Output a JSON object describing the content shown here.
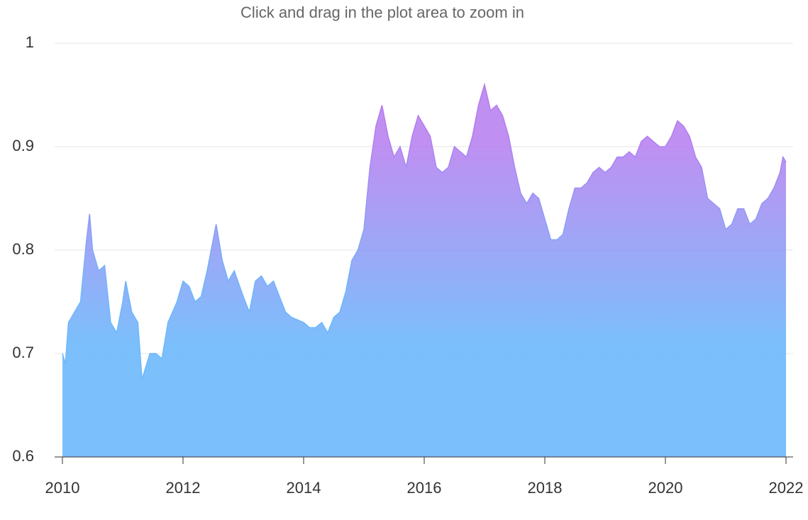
{
  "chart_data": {
    "type": "area",
    "subtitle": "Click and drag in the plot area to zoom in",
    "x": [
      2010.0,
      2010.05,
      2010.1,
      2010.2,
      2010.3,
      2010.4,
      2010.45,
      2010.5,
      2010.6,
      2010.7,
      2010.8,
      2010.9,
      2011.0,
      2011.05,
      2011.15,
      2011.25,
      2011.32,
      2011.45,
      2011.55,
      2011.65,
      2011.75,
      2011.9,
      2012.0,
      2012.1,
      2012.2,
      2012.3,
      2012.4,
      2012.5,
      2012.55,
      2012.65,
      2012.75,
      2012.85,
      2013.0,
      2013.1,
      2013.2,
      2013.3,
      2013.4,
      2013.5,
      2013.6,
      2013.7,
      2013.8,
      2014.0,
      2014.1,
      2014.2,
      2014.3,
      2014.4,
      2014.5,
      2014.6,
      2014.7,
      2014.8,
      2014.9,
      2015.0,
      2015.05,
      2015.1,
      2015.2,
      2015.3,
      2015.4,
      2015.5,
      2015.6,
      2015.7,
      2015.8,
      2015.9,
      2016.0,
      2016.1,
      2016.2,
      2016.3,
      2016.4,
      2016.5,
      2016.6,
      2016.7,
      2016.8,
      2016.9,
      2017.0,
      2017.1,
      2017.2,
      2017.3,
      2017.4,
      2017.5,
      2017.6,
      2017.7,
      2017.8,
      2017.9,
      2018.0,
      2018.1,
      2018.2,
      2018.3,
      2018.4,
      2018.5,
      2018.6,
      2018.7,
      2018.8,
      2018.9,
      2019.0,
      2019.1,
      2019.2,
      2019.3,
      2019.4,
      2019.5,
      2019.6,
      2019.7,
      2019.8,
      2019.9,
      2020.0,
      2020.1,
      2020.2,
      2020.3,
      2020.4,
      2020.5,
      2020.6,
      2020.7,
      2020.8,
      2020.9,
      2021.0,
      2021.1,
      2021.2,
      2021.3,
      2021.4,
      2021.5,
      2021.6,
      2021.7,
      2021.8,
      2021.9,
      2021.95,
      2022.0
    ],
    "values": [
      0.7,
      0.69,
      0.73,
      0.74,
      0.75,
      0.81,
      0.835,
      0.8,
      0.78,
      0.785,
      0.73,
      0.72,
      0.75,
      0.77,
      0.74,
      0.73,
      0.675,
      0.7,
      0.7,
      0.695,
      0.73,
      0.75,
      0.77,
      0.765,
      0.75,
      0.755,
      0.78,
      0.81,
      0.825,
      0.79,
      0.77,
      0.78,
      0.755,
      0.74,
      0.77,
      0.775,
      0.765,
      0.77,
      0.755,
      0.74,
      0.735,
      0.73,
      0.725,
      0.725,
      0.73,
      0.72,
      0.735,
      0.74,
      0.76,
      0.79,
      0.8,
      0.82,
      0.85,
      0.88,
      0.92,
      0.94,
      0.91,
      0.89,
      0.9,
      0.88,
      0.91,
      0.93,
      0.92,
      0.91,
      0.88,
      0.875,
      0.88,
      0.9,
      0.895,
      0.89,
      0.91,
      0.94,
      0.96,
      0.935,
      0.94,
      0.93,
      0.91,
      0.88,
      0.855,
      0.845,
      0.855,
      0.85,
      0.83,
      0.81,
      0.81,
      0.815,
      0.84,
      0.86,
      0.86,
      0.865,
      0.875,
      0.88,
      0.875,
      0.88,
      0.89,
      0.89,
      0.895,
      0.89,
      0.905,
      0.91,
      0.905,
      0.9,
      0.9,
      0.91,
      0.925,
      0.92,
      0.91,
      0.89,
      0.88,
      0.85,
      0.845,
      0.84,
      0.82,
      0.825,
      0.84,
      0.84,
      0.825,
      0.83,
      0.845,
      0.85,
      0.86,
      0.875,
      0.89,
      0.885
    ],
    "color_top": "#b57bef",
    "color_bottom": "#6cb8fb",
    "xlim": [
      2010,
      2022
    ],
    "xticks": [
      2010,
      2012,
      2014,
      2016,
      2018,
      2020,
      2022
    ],
    "ylim": [
      0.6,
      1
    ],
    "yticks": [
      0.6,
      0.7,
      0.8,
      0.9,
      1
    ],
    "grid": true
  }
}
